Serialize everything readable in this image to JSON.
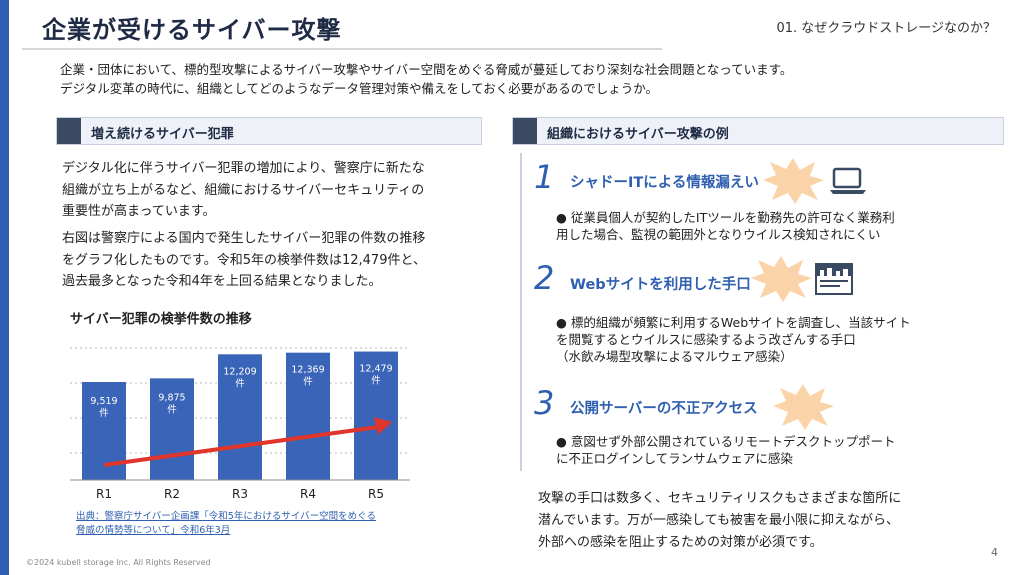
{
  "page": {
    "title": "企業が受けるサイバー攻撃",
    "section": "01. なぜクラウドストレージなのか？",
    "page_number": "4",
    "copyright": "©2024 kubell storage Inc. All Rights Reserved"
  },
  "intro": {
    "line1": "企業・団体において、標的型攻撃によるサイバー攻撃やサイバー空間をめぐる脅威が蔓延しており深刻な社会問題となっています。",
    "line2": "デジタル変革の時代に、組織としてどのようなデータ管理対策や備えをしておく必要があるのでしょうか。"
  },
  "left": {
    "header": "増え続けるサイバー犯罪",
    "para1": [
      "デジタル化に伴うサイバー犯罪の増加により、警察庁に新たな",
      "組織が立ち上がるなど、組織におけるサイバーセキュリティの",
      "重要性が高まっています。"
    ],
    "para2": [
      "右図は警察庁による国内で発生したサイバー犯罪の件数の推移",
      "をグラフ化したものです。令和5年の検挙件数は12,479件と、",
      "過去最多となった令和4年を上回る結果となりました。"
    ],
    "chart_title": "サイバー犯罪の検挙件数の推移",
    "source": [
      "出典：警察庁サイバー企画課「令和5年におけるサイバー空間をめぐる",
      "脅威の情勢等について」令和6年3月"
    ]
  },
  "chart_data": {
    "type": "bar",
    "title": "サイバー犯罪の検挙件数の推移",
    "categories": [
      "R1",
      "R2",
      "R3",
      "R4",
      "R5"
    ],
    "values": [
      9519,
      9875,
      12209,
      12369,
      12479
    ],
    "value_labels": [
      "9,519",
      "9,875",
      "12,209",
      "12,369",
      "12,479"
    ],
    "unit": "件",
    "ylim": [
      0,
      13600
    ],
    "grid": true,
    "bar_color": "#3a64b8",
    "trend_arrow_color": "#e0352b"
  },
  "right": {
    "header": "組織におけるサイバー攻撃の例",
    "items": [
      {
        "num": "1",
        "title": "シャドーITによる情報漏えい",
        "icon": "laptop-icon",
        "desc": [
          "● 従業員個人が契約したITツールを勤務先の許可なく業務利",
          "用した場合、監視の範囲外となりウイルス検知されにくい"
        ]
      },
      {
        "num": "2",
        "title": "Webサイトを利用した手口",
        "icon": "website-icon",
        "desc": [
          "● 標的組織が頻繁に利用するWebサイトを調査し、当該サイト",
          "を閲覧するとウイルスに感染するよう改ざんする手口",
          "（水飲み場型攻撃によるマルウェア感染）"
        ]
      },
      {
        "num": "3",
        "title": "公開サーバーの不正アクセス",
        "icon": "",
        "desc": [
          "● 意図せず外部公開されているリモートデスクトップポート",
          "に不正ログインしてランサムウェアに感染"
        ]
      }
    ],
    "closing": [
      "攻撃の手口は数多く、セキュリティリスクもさまざまな箇所に",
      "潜んでいます。万が一感染しても被害を最小限に抑えながら、",
      "外部への感染を阻止するための対策が必須です。"
    ]
  },
  "colors": {
    "accent": "#2f5fb0",
    "burst": "#fbd3a8",
    "header_block": "#3b4a63"
  }
}
